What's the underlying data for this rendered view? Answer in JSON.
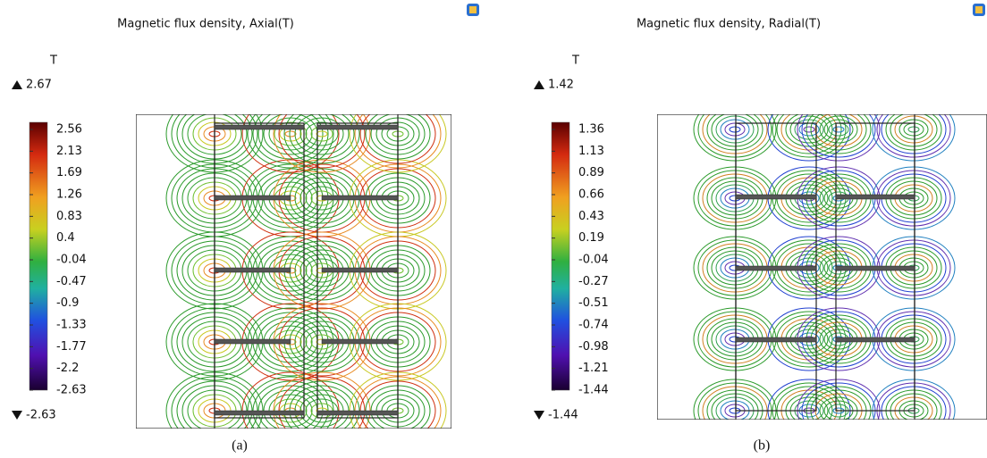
{
  "panels": [
    {
      "title": "Magnetic flux density, Axial(T)",
      "unit": "T",
      "max": "2.67",
      "min": "-2.63",
      "colorbar_labels": [
        "2.56",
        "2.13",
        "1.69",
        "1.26",
        "0.83",
        "0.4",
        "-0.04",
        "-0.47",
        "-0.9",
        "-1.33",
        "-1.77",
        "-2.2",
        "-2.63"
      ],
      "caption": "(a)"
    },
    {
      "title": "Magnetic flux density, Radial(T)",
      "unit": "T",
      "max": "1.42",
      "min": "-1.44",
      "colorbar_labels": [
        "1.36",
        "1.13",
        "0.89",
        "0.66",
        "0.43",
        "0.19",
        "-0.04",
        "-0.27",
        "-0.51",
        "-0.74",
        "-0.98",
        "-1.21",
        "-1.44"
      ],
      "caption": "(b)"
    }
  ]
}
